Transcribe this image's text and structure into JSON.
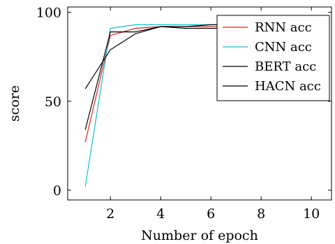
{
  "chart_data": {
    "type": "line",
    "xlabel": "Number of epoch",
    "ylabel": "score",
    "xlim": [
      0.3,
      10.8
    ],
    "ylim": [
      -5.5,
      103
    ],
    "xticks": [
      2,
      4,
      6,
      8,
      10
    ],
    "yticks": [
      0,
      50,
      100
    ],
    "legend_position": "top-right",
    "series": [
      {
        "name": "RNN acc",
        "color": "#d62728",
        "x": [
          1,
          2,
          3,
          4,
          5,
          6,
          7
        ],
        "y": [
          27,
          87,
          91,
          92,
          92,
          92,
          92
        ]
      },
      {
        "name": "CNN acc",
        "color": "#17becf",
        "x": [
          1,
          2,
          3,
          4,
          5,
          6,
          7
        ],
        "y": [
          2,
          91,
          93,
          93,
          93,
          93,
          93
        ]
      },
      {
        "name": "BERT acc",
        "color": "#000000",
        "x": [
          1,
          2,
          3,
          4,
          5,
          6,
          7
        ],
        "y": [
          34,
          89,
          89,
          92,
          92,
          93,
          93
        ]
      },
      {
        "name": "HACN acc",
        "color": "#000000",
        "x": [
          1,
          2,
          3,
          4,
          5,
          6,
          7
        ],
        "y": [
          57,
          79,
          88,
          92,
          91,
          91,
          91
        ]
      }
    ]
  }
}
